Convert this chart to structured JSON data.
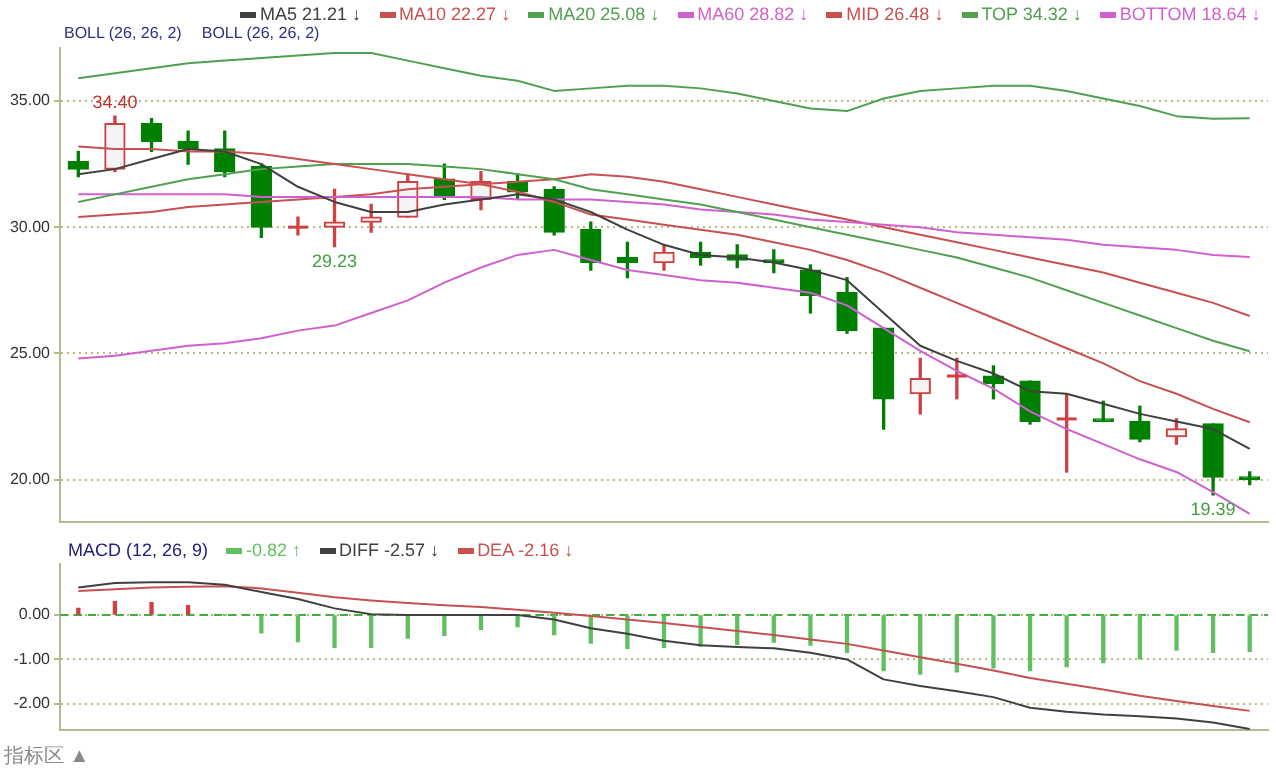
{
  "chart_data": [
    {
      "type": "candlestick",
      "categories": [
        null,
        null,
        null,
        null,
        null,
        null,
        null,
        null,
        null,
        null,
        null,
        null,
        null,
        null,
        null,
        null,
        null,
        null,
        null,
        null,
        null,
        null,
        null,
        null,
        null,
        null,
        null,
        null,
        null,
        null,
        null,
        null,
        null
      ],
      "series": [
        {
          "type": "candlestick",
          "ohlc": [
            [
              32.6,
              33.0,
              32.0,
              32.3
            ],
            [
              32.3,
              34.4,
              32.2,
              34.1
            ],
            [
              34.1,
              34.3,
              33.0,
              33.4
            ],
            [
              33.4,
              33.8,
              32.5,
              33.1
            ],
            [
              33.1,
              33.8,
              32.0,
              32.2
            ],
            [
              32.4,
              32.5,
              29.6,
              30.0
            ],
            [
              30.0,
              30.4,
              29.7,
              30.0
            ],
            [
              30.0,
              31.5,
              29.23,
              30.2
            ],
            [
              30.2,
              30.9,
              29.8,
              30.4
            ],
            [
              30.4,
              32.1,
              30.4,
              31.8
            ],
            [
              31.9,
              32.5,
              31.1,
              31.2
            ],
            [
              31.1,
              32.2,
              30.7,
              31.8
            ],
            [
              31.8,
              32.1,
              31.1,
              31.4
            ],
            [
              31.5,
              31.6,
              29.7,
              29.8
            ],
            [
              29.9,
              30.2,
              28.3,
              28.6
            ],
            [
              28.8,
              29.4,
              28.0,
              28.6
            ],
            [
              28.6,
              29.3,
              28.3,
              29.0
            ],
            [
              29.0,
              29.4,
              28.5,
              28.8
            ],
            [
              28.9,
              29.3,
              28.4,
              28.7
            ],
            [
              28.7,
              29.1,
              28.2,
              28.6
            ],
            [
              28.3,
              28.5,
              26.6,
              27.3
            ],
            [
              27.4,
              28.0,
              25.8,
              25.9
            ],
            [
              26.0,
              26.0,
              22.0,
              23.2
            ],
            [
              23.4,
              24.8,
              22.6,
              24.0
            ],
            [
              24.1,
              24.8,
              23.2,
              24.1
            ],
            [
              24.1,
              24.5,
              23.2,
              23.8
            ],
            [
              23.9,
              23.9,
              22.2,
              22.3
            ],
            [
              22.4,
              23.4,
              20.3,
              22.4
            ],
            [
              22.4,
              23.1,
              22.3,
              22.3
            ],
            [
              22.3,
              22.9,
              21.5,
              21.6
            ],
            [
              21.7,
              22.4,
              21.4,
              22.0
            ],
            [
              22.2,
              22.2,
              19.39,
              20.1
            ],
            [
              20.1,
              20.3,
              19.8,
              20.0
            ]
          ],
          "colors": [
            "#008000",
            "#d04040",
            "#008000",
            "#008000",
            "#008000",
            "#008000",
            "#d04040",
            "#d04040",
            "#d04040",
            "#d04040",
            "#008000",
            "#d04040",
            "#008000",
            "#008000",
            "#008000",
            "#008000",
            "#d04040",
            "#008000",
            "#008000",
            "#008000",
            "#008000",
            "#008000",
            "#008000",
            "#d04040",
            "#d04040",
            "#008000",
            "#008000",
            "#d04040",
            "#008000",
            "#008000",
            "#d04040",
            "#008000",
            "#008000"
          ]
        },
        {
          "type": "line",
          "name": "MA5 21.21 ↓",
          "color": "#404040",
          "values": [
            32.1,
            32.3,
            32.7,
            33.1,
            33.0,
            32.5,
            31.6,
            31.0,
            30.6,
            30.6,
            30.9,
            31.1,
            31.3,
            31.1,
            30.6,
            29.9,
            29.3,
            28.9,
            28.8,
            28.6,
            28.3,
            27.9,
            26.6,
            25.3,
            24.7,
            24.2,
            23.5,
            23.4,
            23.0,
            22.6,
            22.3,
            22.0,
            21.21
          ]
        },
        {
          "type": "line",
          "name": "MA10 22.27 ↓",
          "color": "#c85050",
          "values": [
            33.2,
            33.1,
            33.1,
            33.0,
            33.0,
            32.9,
            32.7,
            32.5,
            32.3,
            32.1,
            31.9,
            31.7,
            31.4,
            31.0,
            30.5,
            30.3,
            30.1,
            29.9,
            29.7,
            29.4,
            29.1,
            28.7,
            28.2,
            27.6,
            27.0,
            26.4,
            25.8,
            25.2,
            24.6,
            23.9,
            23.4,
            22.8,
            22.27
          ]
        },
        {
          "type": "line",
          "name": "MA20 25.08 ↓",
          "color": "#50a050",
          "values": [
            31.0,
            31.3,
            31.6,
            31.9,
            32.1,
            32.3,
            32.4,
            32.5,
            32.5,
            32.5,
            32.4,
            32.3,
            32.1,
            31.9,
            31.5,
            31.3,
            31.1,
            30.9,
            30.6,
            30.3,
            30.0,
            29.7,
            29.4,
            29.1,
            28.8,
            28.4,
            28.0,
            27.5,
            27.0,
            26.5,
            26.0,
            25.5,
            25.08
          ]
        },
        {
          "type": "line",
          "name": "MA60 28.82 ↓",
          "color": "#d060d0",
          "values": [
            31.3,
            31.3,
            31.3,
            31.3,
            31.3,
            31.2,
            31.2,
            31.2,
            31.2,
            31.2,
            31.2,
            31.2,
            31.1,
            31.1,
            31.1,
            31.0,
            30.9,
            30.7,
            30.6,
            30.5,
            30.3,
            30.2,
            30.1,
            30.0,
            29.8,
            29.7,
            29.6,
            29.5,
            29.3,
            29.2,
            29.1,
            28.9,
            28.82
          ]
        },
        {
          "type": "line",
          "name": "MID 26.48 ↓",
          "color": "#c85050",
          "values": [
            30.4,
            30.5,
            30.6,
            30.8,
            30.9,
            31.0,
            31.1,
            31.2,
            31.3,
            31.5,
            31.6,
            31.7,
            31.8,
            31.9,
            32.1,
            32.0,
            31.8,
            31.5,
            31.2,
            30.9,
            30.6,
            30.3,
            30.0,
            29.7,
            29.4,
            29.1,
            28.8,
            28.5,
            28.2,
            27.8,
            27.4,
            27.0,
            26.48
          ]
        },
        {
          "type": "line",
          "name": "TOP 34.32 ↓",
          "color": "#50a050",
          "values": [
            35.9,
            36.1,
            36.3,
            36.5,
            36.6,
            36.7,
            36.8,
            36.9,
            36.9,
            36.6,
            36.3,
            36.0,
            35.8,
            35.4,
            35.5,
            35.6,
            35.6,
            35.5,
            35.3,
            35.0,
            34.7,
            34.6,
            35.1,
            35.4,
            35.5,
            35.6,
            35.6,
            35.4,
            35.1,
            34.8,
            34.4,
            34.3,
            34.32
          ]
        },
        {
          "type": "line",
          "name": "BOTTOM 18.64 ↓",
          "color": "#d060d0",
          "values": [
            24.8,
            24.9,
            25.1,
            25.3,
            25.4,
            25.6,
            25.9,
            26.1,
            26.6,
            27.1,
            27.8,
            28.4,
            28.9,
            29.1,
            28.7,
            28.3,
            28.1,
            27.9,
            27.8,
            27.6,
            27.4,
            26.9,
            26.0,
            25.1,
            24.3,
            23.6,
            22.7,
            22.0,
            21.4,
            20.8,
            20.3,
            19.5,
            18.64
          ]
        }
      ],
      "ylim": [
        18.3,
        37.1
      ],
      "yticks": [
        {
          "value": 20,
          "label": "20.00"
        },
        {
          "value": 25,
          "label": "25.00"
        },
        {
          "value": 30,
          "label": "30.00"
        },
        {
          "value": 35,
          "label": "35.00"
        }
      ],
      "grid": "y",
      "legend": "top",
      "tick_labels": "y",
      "annotations": [
        "BOLL (26, 26, 2)",
        "BOLL (26, 26, 2)",
        {
          "text": "34.40",
          "y": 34.4
        },
        {
          "text": "29.23",
          "y": 29.23
        },
        {
          "text": "19.39",
          "y": 19.39
        }
      ]
    },
    {
      "type": "bar",
      "title": "MACD (12, 26, 9)",
      "categories": [
        null,
        null,
        null,
        null,
        null,
        null,
        null,
        null,
        null,
        null,
        null,
        null,
        null,
        null,
        null,
        null,
        null,
        null,
        null,
        null,
        null,
        null,
        null,
        null,
        null,
        null,
        null,
        null,
        null,
        null,
        null,
        null,
        null
      ],
      "series": [
        {
          "type": "bar",
          "name": "-0.82 ↑",
          "colors": [
            "#d04040",
            "#d04040",
            "#d04040",
            "#d04040",
            "#60c060",
            "#60c060",
            "#60c060",
            "#60c060",
            "#60c060",
            "#60c060",
            "#60c060",
            "#60c060",
            "#60c060",
            "#60c060",
            "#60c060",
            "#60c060",
            "#60c060",
            "#60c060",
            "#60c060",
            "#60c060",
            "#60c060",
            "#60c060",
            "#60c060",
            "#60c060",
            "#60c060",
            "#60c060",
            "#60c060",
            "#60c060",
            "#60c060",
            "#60c060",
            "#60c060",
            "#60c060",
            "#60c060"
          ],
          "values": [
            0.15,
            0.3,
            0.28,
            0.21,
            0,
            -0.4,
            -0.6,
            -0.73,
            -0.73,
            -0.52,
            -0.46,
            -0.32,
            -0.26,
            -0.44,
            -0.63,
            -0.75,
            -0.73,
            -0.7,
            -0.66,
            -0.61,
            -0.68,
            -0.84,
            -1.25,
            -1.33,
            -1.28,
            -1.19,
            -1.25,
            -1.16,
            -1.07,
            -0.99,
            -0.79,
            -0.84,
            -0.82
          ]
        },
        {
          "type": "line",
          "name": "DIFF -2.57 ↓",
          "color": "#404040",
          "values": [
            0.62,
            0.72,
            0.74,
            0.74,
            0.68,
            0.52,
            0.36,
            0.15,
            0.02,
            0,
            0,
            0,
            0,
            -0.1,
            -0.3,
            -0.42,
            -0.58,
            -0.68,
            -0.72,
            -0.75,
            -0.85,
            -1.0,
            -1.45,
            -1.6,
            -1.72,
            -1.85,
            -2.09,
            -2.18,
            -2.24,
            -2.28,
            -2.33,
            -2.42,
            -2.57
          ]
        },
        {
          "type": "line",
          "name": "DEA -2.16 ↓",
          "color": "#c85050",
          "values": [
            0.54,
            0.58,
            0.62,
            0.64,
            0.65,
            0.6,
            0.5,
            0.4,
            0.33,
            0.27,
            0.22,
            0.18,
            0.12,
            0.05,
            -0.02,
            -0.1,
            -0.18,
            -0.27,
            -0.36,
            -0.45,
            -0.55,
            -0.65,
            -0.8,
            -0.95,
            -1.1,
            -1.25,
            -1.42,
            -1.55,
            -1.68,
            -1.82,
            -1.94,
            -2.05,
            -2.16
          ]
        }
      ],
      "ylim": [
        -2.6,
        1.15
      ],
      "yticks": [
        {
          "value": 0,
          "label": "0.00"
        },
        {
          "value": -1,
          "label": "-1.00"
        },
        {
          "value": -2,
          "label": "-2.00"
        }
      ],
      "grid": "y",
      "legend": "top",
      "tick_labels": "y",
      "ref_lines": [
        {
          "axis": "y",
          "value": 0,
          "color": "#40b040",
          "line_style": "dashed"
        }
      ],
      "annotations": [
        "指标区 ▲"
      ]
    }
  ]
}
